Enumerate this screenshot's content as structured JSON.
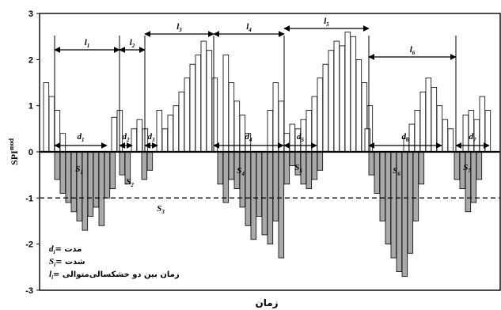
{
  "chart_data": {
    "type": "bar",
    "ylabel": "SPI",
    "ylabel_sup": "mod",
    "xlabel": "زمان",
    "ylim": [
      -3,
      3
    ],
    "y_ticks": [
      "3",
      "2",
      "1",
      "0",
      "-1",
      "-2",
      "-3"
    ],
    "threshold": -1,
    "positive_values": [
      1.5,
      1.2,
      0.9,
      0.4,
      0.75,
      0.9,
      0.5,
      0.7,
      0.5,
      0.9,
      0.5,
      0.8,
      1.0,
      1.3,
      1.6,
      1.9,
      2.1,
      2.4,
      2.2,
      1.6,
      2.1,
      1.5,
      1.1,
      0.8,
      0.4,
      0.9,
      1.5,
      1.1,
      0.4,
      0.6,
      0.5,
      0.7,
      0.9,
      1.2,
      1.6,
      1.9,
      2.2,
      2.4,
      2.3,
      2.6,
      2.5,
      2.0,
      1.5,
      1.0,
      0.3,
      0.6,
      0.9,
      1.3,
      1.6,
      1.4,
      1.0,
      0.7,
      0.5,
      0.8,
      0.9,
      0.7,
      1.2,
      0.9,
      0.5
    ],
    "negative_values": [
      -0.6,
      -0.9,
      -1.1,
      -1.3,
      -1.5,
      -1.7,
      -1.4,
      -1.2,
      -1.6,
      -1.0,
      -0.8,
      -0.5,
      -0.7,
      -0.6,
      -0.4,
      -0.7,
      -1.1,
      -0.6,
      -0.8,
      -1.2,
      -1.6,
      -1.9,
      -1.4,
      -1.8,
      -2.0,
      -1.5,
      -2.3,
      -0.7,
      -0.3,
      -0.5,
      -0.7,
      -0.8,
      -0.6,
      -0.4,
      -0.5,
      -0.9,
      -1.5,
      -2.0,
      -2.3,
      -2.6,
      -2.7,
      -2.2,
      -1.5,
      -0.7,
      -0.6,
      -0.8,
      -1.3,
      -1.1,
      -0.6
    ],
    "drought_labels": [
      "S1",
      "S2",
      "S3",
      "S4",
      "S5",
      "S6",
      "S7"
    ],
    "duration_labels": [
      "d1",
      "d2",
      "d3",
      "d4",
      "d5",
      "d6",
      "d7"
    ],
    "interval_labels": [
      "l1",
      "l2",
      "l3",
      "l4",
      "l5",
      "l6"
    ],
    "legend": [
      {
        "symbol": "d",
        "sub": "i",
        "text": "= مدت"
      },
      {
        "symbol": "S",
        "sub": "i",
        "text": "= شدت"
      },
      {
        "symbol": "l",
        "sub": "i",
        "text": "= زمان بین دو خشکسالی‌متوالی"
      }
    ]
  }
}
